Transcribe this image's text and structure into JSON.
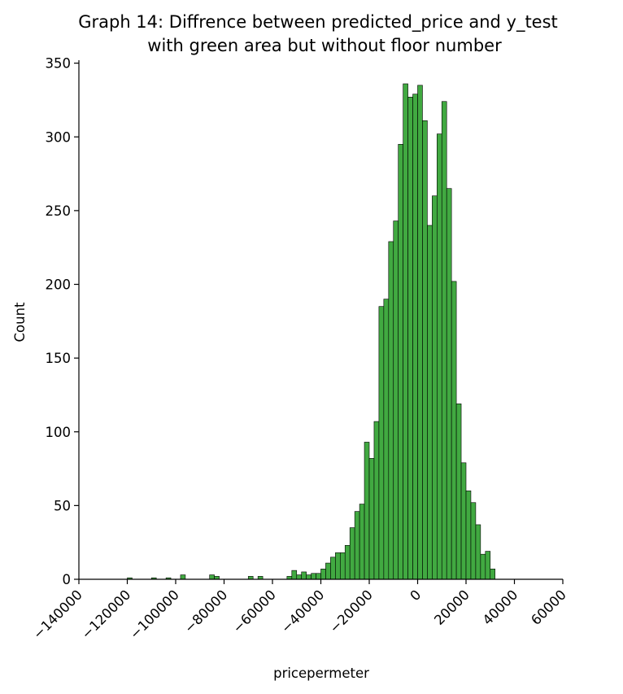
{
  "chart_data": {
    "type": "bar",
    "title_line1": "Graph 14: Diffrence between predicted_price and y_test",
    "title_line2": "with green area but without  floor number",
    "xlabel": "pricepermeter",
    "ylabel": "Count",
    "xlim": [
      -140000,
      60000
    ],
    "ylim": [
      0,
      352
    ],
    "bar_color": "#2ca02c",
    "edge_color": "#000000",
    "grid": false,
    "x_ticks": [
      -140000,
      -120000,
      -100000,
      -80000,
      -60000,
      -40000,
      -20000,
      0,
      20000,
      40000,
      60000
    ],
    "x_tick_labels": [
      "−140000",
      "−120000",
      "−100000",
      "−80000",
      "−60000",
      "−40000",
      "−20000",
      "0",
      "20000",
      "40000",
      "60000"
    ],
    "y_ticks": [
      0,
      50,
      100,
      150,
      200,
      250,
      300,
      350
    ],
    "y_tick_labels": [
      "0",
      "50",
      "100",
      "150",
      "200",
      "250",
      "300",
      "350"
    ],
    "bin_width": 2000,
    "bin_starts": [
      -120000,
      -110000,
      -104000,
      -98000,
      -86000,
      -84000,
      -70000,
      -66000,
      -54000,
      -52000,
      -50000,
      -48000,
      -46000,
      -44000,
      -42000,
      -40000,
      -38000,
      -36000,
      -34000,
      -32000,
      -30000,
      -28000,
      -26000,
      -24000,
      -22000,
      -20000,
      -18000,
      -16000,
      -14000,
      -12000,
      -10000,
      -8000,
      -6000,
      -4000,
      -2000,
      0,
      2000,
      4000,
      6000,
      8000,
      10000,
      12000,
      14000,
      16000,
      18000,
      20000,
      22000,
      24000,
      26000,
      28000,
      30000,
      32000
    ],
    "counts": [
      1,
      1,
      1,
      3,
      3,
      2,
      2,
      2,
      2,
      6,
      3,
      5,
      3,
      4,
      4,
      7,
      11,
      15,
      18,
      18,
      23,
      35,
      46,
      51,
      93,
      82,
      107,
      185,
      190,
      229,
      243,
      295,
      336,
      327,
      329,
      335,
      311,
      240,
      260,
      302,
      324,
      265,
      202,
      119,
      79,
      60,
      52,
      37,
      17,
      19,
      7,
      0
    ]
  }
}
